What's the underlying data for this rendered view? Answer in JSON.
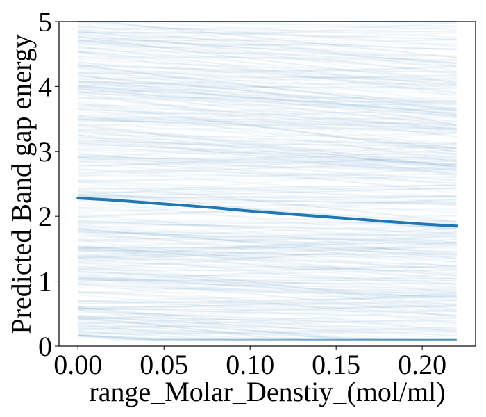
{
  "chart_data": {
    "type": "line",
    "title": "",
    "xlabel": "range_Molar_Denstiy_(mol/ml)",
    "ylabel": "Predicted Band gap energy",
    "xlim": [
      -0.011,
      0.231
    ],
    "ylim": [
      0,
      5
    ],
    "xticks": [
      "0.00",
      "0.05",
      "0.10",
      "0.15",
      "0.20"
    ],
    "xtick_values": [
      0.0,
      0.05,
      0.1,
      0.15,
      0.2
    ],
    "yticks": [
      "0",
      "1",
      "2",
      "3",
      "4",
      "5"
    ],
    "ytick_values": [
      0,
      1,
      2,
      3,
      4,
      5
    ],
    "grid": false,
    "legend": "none",
    "x_range": [
      0.0,
      0.22
    ],
    "ice_curves": {
      "description_count": 400,
      "start_range": [
        0.15,
        5.2
      ],
      "color": "#1f77b4",
      "opacity": 0.05
    },
    "series": [
      {
        "x": [
          0.0,
          0.02,
          0.04,
          0.06,
          0.08,
          0.1,
          0.12,
          0.14,
          0.16,
          0.18,
          0.2,
          0.22
        ],
        "values": [
          2.28,
          2.25,
          2.21,
          2.17,
          2.13,
          2.08,
          2.04,
          2.0,
          1.96,
          1.92,
          1.88,
          1.85
        ],
        "color": "#1f77b4"
      }
    ]
  }
}
